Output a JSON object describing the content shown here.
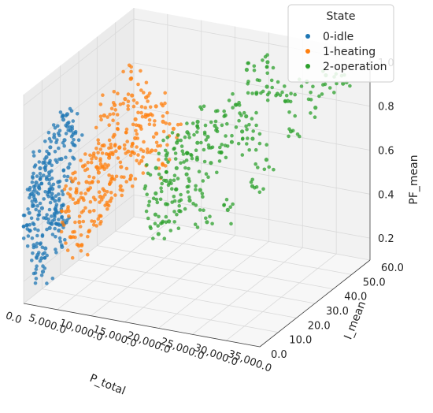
{
  "chart_data": {
    "type": "scatter",
    "projection": "3d",
    "xlabel": "P_total",
    "ylabel": "I_mean",
    "zlabel": "PF_mean",
    "xlim": [
      0,
      35000
    ],
    "ylim": [
      0,
      60
    ],
    "zlim": [
      0.1,
      1.05
    ],
    "x_ticks": [
      "0.0",
      "5,000.0",
      "10,000.0",
      "15,000.0",
      "20,000.0",
      "25,000.0",
      "30,000.0",
      "35,000.0"
    ],
    "x_tick_values": [
      0,
      5000,
      10000,
      15000,
      20000,
      25000,
      30000,
      35000
    ],
    "y_ticks": [
      "0.0",
      "10.0",
      "20.0",
      "30.0",
      "40.0",
      "50.0",
      "60.0"
    ],
    "y_tick_values": [
      0,
      10,
      20,
      30,
      40,
      50,
      60
    ],
    "z_ticks": [
      "0.2",
      "0.4",
      "0.6",
      "0.8",
      "1.0"
    ],
    "z_tick_values": [
      0.2,
      0.4,
      0.6,
      0.8,
      1.0
    ],
    "grid": true,
    "legend": {
      "title": "State",
      "position": "top-right",
      "entries": [
        {
          "label": "0-idle",
          "color": "#1f77b4"
        },
        {
          "label": "1-heating",
          "color": "#ff7f0e"
        },
        {
          "label": "2-operation",
          "color": "#2ca02c"
        }
      ]
    },
    "series": [
      {
        "name": "0-idle",
        "color": "#1f77b4",
        "points": [
          [
            500,
            5,
            0.62
          ],
          [
            800,
            6,
            0.68
          ],
          [
            1200,
            8,
            0.72
          ],
          [
            1500,
            9,
            0.76
          ],
          [
            1800,
            10,
            0.8
          ],
          [
            600,
            4,
            0.55
          ],
          [
            900,
            5,
            0.6
          ],
          [
            1100,
            6,
            0.5
          ],
          [
            1400,
            7,
            0.45
          ],
          [
            1700,
            8,
            0.4
          ],
          [
            700,
            3,
            0.35
          ],
          [
            1000,
            4,
            0.3
          ],
          [
            1300,
            5,
            0.28
          ],
          [
            1600,
            6,
            0.32
          ],
          [
            2000,
            8,
            0.42
          ],
          [
            2200,
            9,
            0.52
          ],
          [
            2400,
            10,
            0.6
          ],
          [
            2600,
            11,
            0.7
          ],
          [
            2800,
            12,
            0.78
          ],
          [
            3000,
            13,
            0.85
          ],
          [
            1900,
            7,
            0.66
          ],
          [
            2100,
            8,
            0.58
          ],
          [
            2300,
            9,
            0.48
          ],
          [
            2500,
            10,
            0.38
          ],
          [
            2700,
            11,
            0.3
          ],
          [
            400,
            2,
            0.42
          ],
          [
            300,
            2,
            0.5
          ],
          [
            200,
            1,
            0.45
          ],
          [
            350,
            3,
            0.58
          ],
          [
            1500,
            5,
            0.22
          ],
          [
            3200,
            12,
            0.9
          ],
          [
            2900,
            11,
            0.88
          ],
          [
            3400,
            13,
            0.82
          ],
          [
            3600,
            14,
            0.75
          ],
          [
            1000,
            7,
            0.7
          ],
          [
            1250,
            8,
            0.62
          ],
          [
            1750,
            9,
            0.55
          ],
          [
            2250,
            10,
            0.46
          ],
          [
            2750,
            12,
            0.4
          ],
          [
            3100,
            13,
            0.65
          ]
        ]
      },
      {
        "name": "1-heating",
        "color": "#ff7f0e",
        "points": [
          [
            4000,
            12,
            0.6
          ],
          [
            5000,
            14,
            0.66
          ],
          [
            6000,
            16,
            0.7
          ],
          [
            7000,
            18,
            0.74
          ],
          [
            8000,
            20,
            0.78
          ],
          [
            4500,
            13,
            0.5
          ],
          [
            5500,
            15,
            0.55
          ],
          [
            6500,
            17,
            0.62
          ],
          [
            7500,
            19,
            0.68
          ],
          [
            8500,
            21,
            0.72
          ],
          [
            5000,
            12,
            0.42
          ],
          [
            6000,
            14,
            0.46
          ],
          [
            7000,
            16,
            0.52
          ],
          [
            8000,
            18,
            0.58
          ],
          [
            9000,
            20,
            0.64
          ],
          [
            9500,
            22,
            0.7
          ],
          [
            10000,
            24,
            0.75
          ],
          [
            10500,
            25,
            0.8
          ],
          [
            11000,
            26,
            0.84
          ],
          [
            12000,
            28,
            0.88
          ],
          [
            6500,
            20,
            0.86
          ],
          [
            7500,
            22,
            0.9
          ],
          [
            8500,
            24,
            0.92
          ],
          [
            9500,
            26,
            0.82
          ],
          [
            11500,
            30,
            0.74
          ],
          [
            4200,
            10,
            0.36
          ],
          [
            5200,
            11,
            0.32
          ],
          [
            6200,
            13,
            0.38
          ],
          [
            7200,
            15,
            0.44
          ],
          [
            8200,
            17,
            0.5
          ],
          [
            9200,
            19,
            0.56
          ],
          [
            10200,
            21,
            0.6
          ],
          [
            11200,
            23,
            0.66
          ],
          [
            12200,
            25,
            0.7
          ],
          [
            13000,
            28,
            0.62
          ],
          [
            3800,
            9,
            0.48
          ],
          [
            4800,
            11,
            0.56
          ],
          [
            5800,
            13,
            0.6
          ],
          [
            6800,
            15,
            0.66
          ],
          [
            7800,
            18,
            0.7
          ],
          [
            10800,
            27,
            0.92
          ],
          [
            9800,
            23,
            0.95
          ],
          [
            12500,
            30,
            0.8
          ],
          [
            13500,
            32,
            0.76
          ],
          [
            8800,
            26,
            1.0
          ]
        ]
      },
      {
        "name": "2-operation",
        "color": "#2ca02c",
        "points": [
          [
            12000,
            28,
            0.6
          ],
          [
            13000,
            30,
            0.65
          ],
          [
            14000,
            32,
            0.7
          ],
          [
            15000,
            34,
            0.74
          ],
          [
            16000,
            36,
            0.78
          ],
          [
            12500,
            26,
            0.5
          ],
          [
            13500,
            28,
            0.55
          ],
          [
            14500,
            30,
            0.6
          ],
          [
            15500,
            32,
            0.66
          ],
          [
            16500,
            34,
            0.7
          ],
          [
            13000,
            24,
            0.42
          ],
          [
            14000,
            26,
            0.46
          ],
          [
            15000,
            28,
            0.52
          ],
          [
            16000,
            30,
            0.58
          ],
          [
            17000,
            32,
            0.64
          ],
          [
            17500,
            36,
            0.72
          ],
          [
            18000,
            38,
            0.76
          ],
          [
            19000,
            40,
            0.8
          ],
          [
            20000,
            42,
            0.84
          ],
          [
            21000,
            44,
            0.78
          ],
          [
            18500,
            34,
            0.62
          ],
          [
            19500,
            36,
            0.66
          ],
          [
            20500,
            38,
            0.7
          ],
          [
            21500,
            40,
            0.74
          ],
          [
            22500,
            42,
            0.7
          ],
          [
            14000,
            22,
            0.35
          ],
          [
            15000,
            24,
            0.4
          ],
          [
            16000,
            26,
            0.44
          ],
          [
            17000,
            28,
            0.48
          ],
          [
            18000,
            30,
            0.52
          ],
          [
            22000,
            46,
            0.88
          ],
          [
            23000,
            48,
            0.9
          ],
          [
            24000,
            50,
            0.86
          ],
          [
            25000,
            52,
            0.82
          ],
          [
            27000,
            55,
            0.9
          ],
          [
            29000,
            58,
            0.92
          ],
          [
            31000,
            60,
            0.88
          ],
          [
            26000,
            50,
            0.7
          ],
          [
            24000,
            44,
            0.6
          ],
          [
            23000,
            40,
            0.5
          ],
          [
            21000,
            34,
            0.42
          ],
          [
            19000,
            30,
            0.38
          ],
          [
            20000,
            48,
            0.96
          ],
          [
            22000,
            52,
            0.98
          ],
          [
            28000,
            56,
            0.78
          ]
        ]
      }
    ]
  }
}
